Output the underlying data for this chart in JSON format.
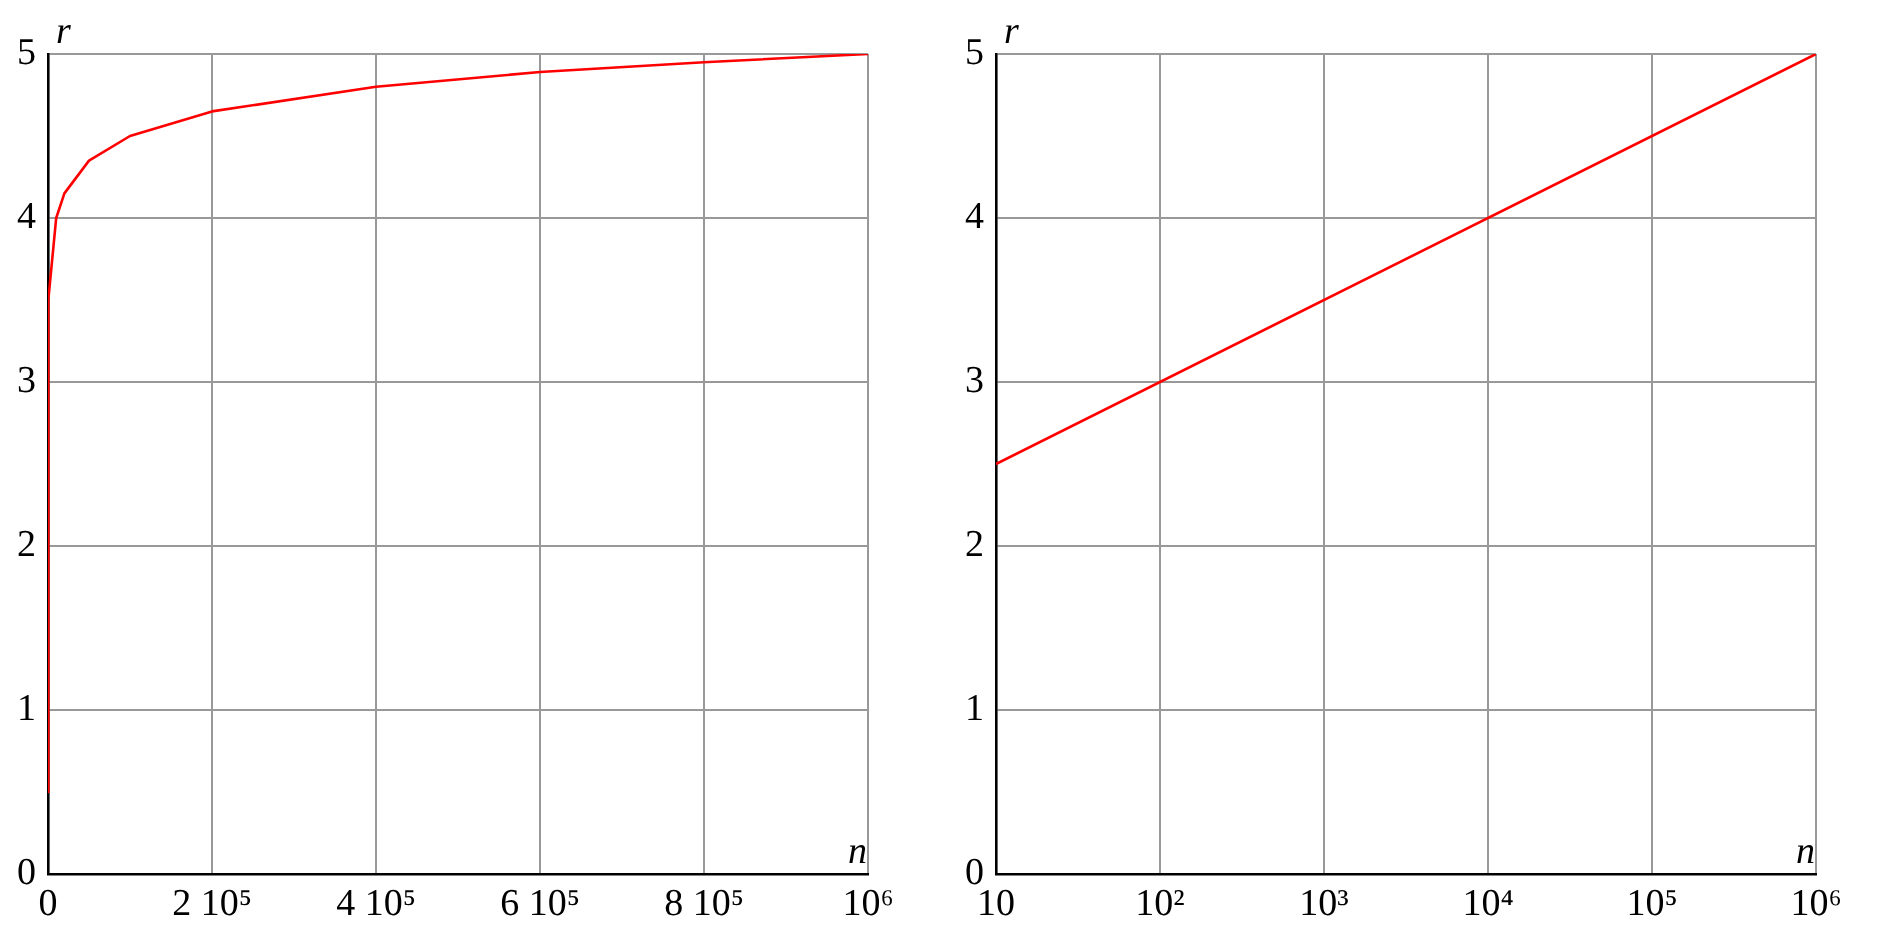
{
  "chart_data": [
    {
      "type": "line",
      "xlabel": "n",
      "ylabel": "r",
      "x": [
        0.001,
        1,
        100,
        1000,
        10000,
        20000,
        50000,
        100000,
        200000,
        400000,
        600000,
        800000,
        1000000
      ],
      "series": [
        {
          "color": "#ff0000",
          "values": [
            0.5,
            2,
            3,
            3.5,
            4,
            4.15,
            4.35,
            4.5,
            4.65,
            4.8,
            4.89,
            4.95,
            5
          ]
        }
      ],
      "xlim": [
        0,
        1000000
      ],
      "xticks": [
        {
          "value": 0,
          "label": "0"
        },
        {
          "value": 200000,
          "label": "2 10⁵"
        },
        {
          "value": 400000,
          "label": "4 10⁵"
        },
        {
          "value": 600000,
          "label": "6 10⁵"
        },
        {
          "value": 800000,
          "label": "8 10⁵"
        },
        {
          "value": 1000000,
          "label": "10⁶"
        }
      ],
      "ylim": [
        0,
        5
      ],
      "yticks": [
        0,
        1,
        2,
        3,
        4,
        5
      ],
      "grid": true,
      "legend": false,
      "marker": "none",
      "line_style": "solid"
    },
    {
      "type": "line",
      "xlabel": "n",
      "ylabel": "r",
      "x": [
        10,
        1000000
      ],
      "series": [
        {
          "color": "#ff0000",
          "values": [
            2.5,
            5
          ]
        }
      ],
      "log": "x",
      "xlim": [
        10,
        1000000
      ],
      "xticks": [
        {
          "value": 10,
          "label": "10"
        },
        {
          "value": 100,
          "label": "10²"
        },
        {
          "value": 1000,
          "label": "10³"
        },
        {
          "value": 10000,
          "label": "10⁴"
        },
        {
          "value": 100000,
          "label": "10⁵"
        },
        {
          "value": 1000000,
          "label": "10⁶"
        }
      ],
      "ylim": [
        0,
        5
      ],
      "yticks": [
        0,
        1,
        2,
        3,
        4,
        5
      ],
      "grid": true,
      "legend": false,
      "marker": "none",
      "line_style": "solid"
    }
  ]
}
